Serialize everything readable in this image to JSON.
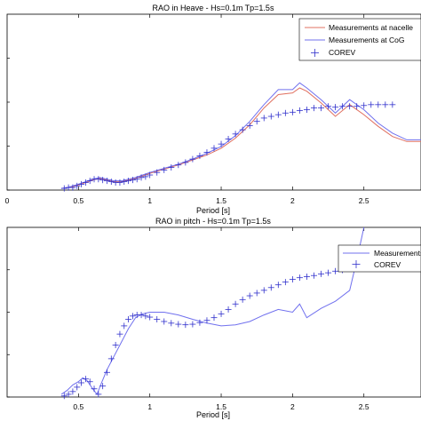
{
  "chart_data": [
    {
      "type": "line",
      "title": "RAO in Heave - Hs=0.1m Tp=1.5s",
      "xlabel": "Period [s]",
      "ylabel": "",
      "xlim": [
        0,
        2.9
      ],
      "ylim": [
        0,
        2.1
      ],
      "xticks": [
        0.5,
        1,
        1.5,
        2,
        2.5
      ],
      "xtick_labels": [
        "0.5",
        "1",
        "1.5",
        "2",
        "2.5"
      ],
      "extra_xtick_label": "0",
      "legend_position": "top-right",
      "series": [
        {
          "name": "Measurements at nacelle",
          "color": "#e07060",
          "style": "line",
          "x": [
            0.38,
            0.42,
            0.46,
            0.5,
            0.55,
            0.6,
            0.65,
            0.7,
            0.75,
            0.8,
            0.85,
            0.9,
            0.95,
            1.0,
            1.1,
            1.2,
            1.3,
            1.4,
            1.5,
            1.6,
            1.7,
            1.8,
            1.9,
            2.0,
            2.05,
            2.1,
            2.2,
            2.3,
            2.4,
            2.5,
            2.6,
            2.7,
            2.8,
            2.9
          ],
          "y": [
            0.02,
            0.03,
            0.04,
            0.06,
            0.09,
            0.12,
            0.14,
            0.12,
            0.1,
            0.1,
            0.12,
            0.14,
            0.17,
            0.2,
            0.25,
            0.3,
            0.36,
            0.42,
            0.5,
            0.62,
            0.78,
            0.98,
            1.14,
            1.16,
            1.22,
            1.18,
            1.04,
            0.88,
            1.02,
            0.9,
            0.76,
            0.64,
            0.58,
            0.58
          ]
        },
        {
          "name": "Measurements at CoG",
          "color": "#7070ee",
          "style": "line",
          "x": [
            0.38,
            0.42,
            0.46,
            0.5,
            0.55,
            0.6,
            0.65,
            0.7,
            0.75,
            0.8,
            0.85,
            0.9,
            0.95,
            1.0,
            1.1,
            1.2,
            1.3,
            1.4,
            1.5,
            1.6,
            1.7,
            1.8,
            1.9,
            2.0,
            2.05,
            2.1,
            2.2,
            2.3,
            2.4,
            2.5,
            2.6,
            2.7,
            2.8,
            2.9
          ],
          "y": [
            0.02,
            0.03,
            0.05,
            0.07,
            0.1,
            0.13,
            0.15,
            0.13,
            0.11,
            0.11,
            0.13,
            0.15,
            0.18,
            0.21,
            0.26,
            0.31,
            0.37,
            0.44,
            0.52,
            0.65,
            0.82,
            1.02,
            1.2,
            1.2,
            1.28,
            1.22,
            1.08,
            0.92,
            1.08,
            0.96,
            0.8,
            0.68,
            0.6,
            0.6
          ]
        },
        {
          "name": "COREV",
          "color": "#3030cc",
          "style": "marker",
          "x": [
            0.4,
            0.43,
            0.46,
            0.49,
            0.52,
            0.55,
            0.58,
            0.61,
            0.64,
            0.67,
            0.7,
            0.73,
            0.76,
            0.79,
            0.82,
            0.85,
            0.88,
            0.91,
            0.94,
            0.97,
            1.0,
            1.05,
            1.1,
            1.15,
            1.2,
            1.25,
            1.3,
            1.35,
            1.4,
            1.45,
            1.5,
            1.55,
            1.6,
            1.65,
            1.7,
            1.75,
            1.8,
            1.85,
            1.9,
            1.95,
            2.0,
            2.05,
            2.1,
            2.15,
            2.2,
            2.25,
            2.3,
            2.35,
            2.4,
            2.45,
            2.5,
            2.55,
            2.6,
            2.65,
            2.7
          ],
          "y": [
            0.02,
            0.03,
            0.03,
            0.05,
            0.07,
            0.09,
            0.11,
            0.13,
            0.13,
            0.12,
            0.11,
            0.1,
            0.09,
            0.09,
            0.1,
            0.11,
            0.12,
            0.13,
            0.15,
            0.16,
            0.18,
            0.21,
            0.24,
            0.27,
            0.3,
            0.33,
            0.37,
            0.41,
            0.45,
            0.5,
            0.55,
            0.61,
            0.67,
            0.72,
            0.77,
            0.82,
            0.86,
            0.88,
            0.9,
            0.92,
            0.93,
            0.95,
            0.96,
            0.98,
            0.98,
            1.0,
            0.99,
            1.0,
            1.0,
            1.0,
            1.01,
            1.02,
            1.02,
            1.02,
            1.02
          ]
        }
      ]
    },
    {
      "type": "line",
      "title": "RAO in pitch - Hs=0.1m Tp=1.5s",
      "xlabel": "Period [s]",
      "ylabel": "",
      "xlim": [
        0,
        2.9
      ],
      "ylim": [
        0,
        3.1
      ],
      "xticks": [
        0.5,
        1,
        1.5,
        2,
        2.5
      ],
      "xtick_labels": [
        "0.5",
        "1",
        "1.5",
        "2",
        "2.5"
      ],
      "legend_position": "top-right",
      "series": [
        {
          "name": "Measurements",
          "color": "#7070ee",
          "style": "line",
          "x": [
            0.38,
            0.42,
            0.46,
            0.5,
            0.53,
            0.56,
            0.6,
            0.63,
            0.66,
            0.7,
            0.75,
            0.8,
            0.85,
            0.9,
            0.95,
            1.0,
            1.1,
            1.2,
            1.3,
            1.4,
            1.5,
            1.6,
            1.7,
            1.8,
            1.9,
            2.0,
            2.05,
            2.1,
            2.2,
            2.3,
            2.4,
            2.45,
            2.5
          ],
          "y": [
            0.05,
            0.12,
            0.22,
            0.28,
            0.35,
            0.3,
            0.15,
            0.05,
            0.25,
            0.5,
            0.75,
            1.0,
            1.25,
            1.45,
            1.52,
            1.55,
            1.55,
            1.5,
            1.42,
            1.35,
            1.3,
            1.32,
            1.38,
            1.5,
            1.6,
            1.55,
            1.7,
            1.45,
            1.62,
            1.75,
            1.95,
            2.5,
            3.1
          ]
        },
        {
          "name": "COREV",
          "color": "#3030cc",
          "style": "marker",
          "x": [
            0.4,
            0.43,
            0.46,
            0.49,
            0.52,
            0.55,
            0.58,
            0.61,
            0.64,
            0.67,
            0.7,
            0.73,
            0.76,
            0.79,
            0.82,
            0.85,
            0.88,
            0.91,
            0.94,
            0.97,
            1.0,
            1.05,
            1.1,
            1.15,
            1.2,
            1.25,
            1.3,
            1.35,
            1.4,
            1.45,
            1.5,
            1.55,
            1.6,
            1.65,
            1.7,
            1.75,
            1.8,
            1.85,
            1.9,
            1.95,
            2.0,
            2.05,
            2.1,
            2.15,
            2.2,
            2.25,
            2.3,
            2.35,
            2.4,
            2.45,
            2.5
          ],
          "y": [
            0.02,
            0.05,
            0.1,
            0.18,
            0.26,
            0.33,
            0.28,
            0.15,
            0.05,
            0.2,
            0.45,
            0.7,
            0.95,
            1.15,
            1.3,
            1.42,
            1.48,
            1.5,
            1.5,
            1.48,
            1.46,
            1.42,
            1.38,
            1.35,
            1.33,
            1.32,
            1.33,
            1.36,
            1.4,
            1.45,
            1.52,
            1.6,
            1.7,
            1.78,
            1.85,
            1.9,
            1.95,
            2.0,
            2.05,
            2.1,
            2.15,
            2.18,
            2.2,
            2.22,
            2.25,
            2.27,
            2.3,
            2.32,
            2.35,
            2.38,
            2.4
          ]
        }
      ]
    }
  ]
}
